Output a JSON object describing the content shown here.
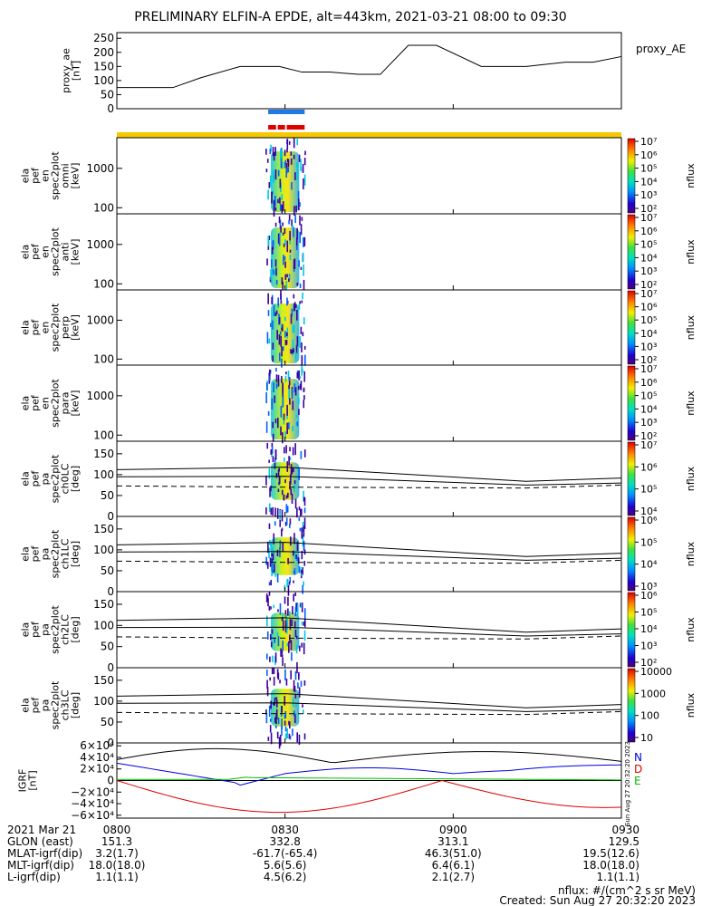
{
  "title": "PRELIMINARY ELFIN-A EPDE, alt=443km, 2021-03-21 08:00 to 09:30",
  "colors": {
    "blue_bar": "#1e78e6",
    "red_bar": "#e00000",
    "yellow_bar": "#f5c800",
    "igrf_n": "#0000e0",
    "igrf_d": "#e00000",
    "igrf_e": "#00c000"
  },
  "time_axis": {
    "start": "08:00",
    "end": "09:30",
    "ticks": [
      "0800",
      "0830",
      "0900",
      "0930"
    ]
  },
  "chart_data": [
    {
      "type": "line",
      "title": "proxy_ae",
      "ylabel": "proxy_ae\n[nT]",
      "ylim": [
        0,
        270
      ],
      "yticks": [
        "250",
        "200",
        "150",
        "100",
        "50",
        "0"
      ],
      "legend": "proxy_AE",
      "x_min": [
        0,
        10,
        15,
        22,
        29,
        33,
        38,
        43,
        47,
        52,
        57,
        65,
        73,
        80,
        85,
        90
      ],
      "values": [
        75,
        75,
        110,
        150,
        150,
        130,
        130,
        122,
        122,
        225,
        225,
        150,
        150,
        165,
        165,
        185
      ]
    },
    {
      "type": "heatmap",
      "ylabel": "ela\npef\nen\nspec2plot\nomni\n[keV]",
      "scale": "log",
      "yticks": [
        "1000",
        "100"
      ],
      "colorbar": {
        "label": "nflux",
        "ticks": [
          "10⁷",
          "10⁶",
          "10⁵",
          "10⁴",
          "10³",
          "10²"
        ]
      }
    },
    {
      "type": "heatmap",
      "ylabel": "ela\npef\nen\nspec2plot\nanti\n[keV]",
      "scale": "log",
      "yticks": [
        "1000",
        "100"
      ],
      "colorbar": {
        "label": "nflux",
        "ticks": [
          "10⁷",
          "10⁶",
          "10⁵",
          "10⁴",
          "10³",
          "10²"
        ]
      }
    },
    {
      "type": "heatmap",
      "ylabel": "ela\npef\nen\nspec2plot\nperp\n[keV]",
      "scale": "log",
      "yticks": [
        "1000",
        "100"
      ],
      "colorbar": {
        "label": "nflux",
        "ticks": [
          "10⁷",
          "10⁶",
          "10⁵",
          "10⁴",
          "10³",
          "10²"
        ]
      }
    },
    {
      "type": "heatmap",
      "ylabel": "ela\npef\nen\nspec2plot\npara\n[keV]",
      "scale": "log",
      "yticks": [
        "1000",
        "100"
      ],
      "colorbar": {
        "label": "nflux",
        "ticks": [
          "10⁷",
          "10⁶",
          "10⁵",
          "10⁴",
          "10³",
          "10²"
        ]
      }
    },
    {
      "type": "heatmap",
      "ylabel": "ela\npef\npa\nspec2plot\nch0LC\n[deg]",
      "ylim": [
        0,
        180
      ],
      "yticks": [
        "150",
        "100",
        "50",
        "0"
      ],
      "colorbar": {
        "label": "nflux",
        "ticks": [
          "10⁷",
          "10⁶",
          "10⁵",
          "10⁴"
        ]
      }
    },
    {
      "type": "heatmap",
      "ylabel": "ela\npef\npa\nspec2plot\nch1LC\n[deg]",
      "ylim": [
        0,
        180
      ],
      "yticks": [
        "150",
        "100",
        "50",
        "0"
      ],
      "colorbar": {
        "label": "nflux",
        "ticks": [
          "10⁶",
          "10⁵",
          "10⁴",
          "10³"
        ]
      }
    },
    {
      "type": "heatmap",
      "ylabel": "ela\npef\npa\nspec2plot\nch2LC\n[deg]",
      "ylim": [
        0,
        180
      ],
      "yticks": [
        "150",
        "100",
        "50",
        "0"
      ],
      "colorbar": {
        "label": "nflux",
        "ticks": [
          "10⁶",
          "10⁵",
          "10⁴",
          "10³",
          "10²"
        ]
      }
    },
    {
      "type": "heatmap",
      "ylabel": "ela\npef\npa\nspec2plot\nch3LC\n[deg]",
      "ylim": [
        0,
        180
      ],
      "yticks": [
        "150",
        "100",
        "50",
        "0"
      ],
      "colorbar": {
        "label": "nflux",
        "ticks": [
          "10000",
          "1000",
          "100",
          "10"
        ]
      }
    },
    {
      "type": "line",
      "ylabel": "IGRF\n[nT]",
      "ylim": [
        -65000,
        65000
      ],
      "yticks": [
        "6×10⁴",
        "4×10⁴",
        "2×10⁴",
        "0",
        "−2×10⁴",
        "−4×10⁴",
        "−6×10⁴"
      ],
      "series": [
        {
          "name": "N",
          "color": "#0000e0"
        },
        {
          "name": "D",
          "color": "#e00000"
        },
        {
          "name": "E",
          "color": "#00c000"
        }
      ],
      "stamp": "Sun Aug 27 20:32:20 2023"
    }
  ],
  "footer": {
    "rows": [
      {
        "label": "2021 Mar 21",
        "values": [
          "0800",
          "0830",
          "0900",
          "0930"
        ]
      },
      {
        "label": "GLON (east)",
        "values": [
          "151.3",
          "332.8",
          "313.1",
          "129.5"
        ]
      },
      {
        "label": "MLAT-igrf(dip)",
        "values": [
          "3.2(1.7)",
          "-61.7(-65.4)",
          "46.3(51.0)",
          "19.5(12.6)"
        ]
      },
      {
        "label": "MLT-igrf(dip)",
        "values": [
          "18.0(18.0)",
          "5.6(5.6)",
          "6.4(6.1)",
          "18.0(18.0)"
        ]
      },
      {
        "label": "L-igrf(dip)",
        "values": [
          "1.1(1.1)",
          "4.5(6.2)",
          "2.1(2.7)",
          "1.1(1.1)"
        ]
      }
    ],
    "units": "nflux: #/(cm^2 s sr MeV)",
    "created": "Created: Sun Aug 27 20:32:20 2023"
  }
}
